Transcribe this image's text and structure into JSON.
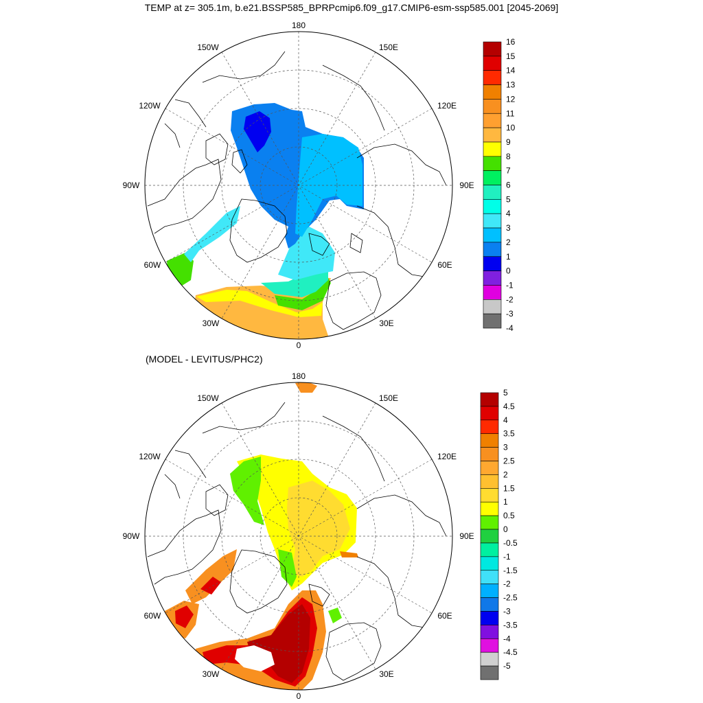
{
  "title": "TEMP at z= 305.1m, b.e21.BSSP585_BPRPcmip6.f09_g17.CMIP6-esm-ssp585.001 [2045-2069]",
  "subtitle": "(MODEL - LEVITUS/PHC2)",
  "maps": [
    {
      "id": "model",
      "lon_labels": [
        "180",
        "150W",
        "150E",
        "120W",
        "120E",
        "90W",
        "90E",
        "60W",
        "60E",
        "30W",
        "30E",
        "0"
      ]
    },
    {
      "id": "difference",
      "lon_labels": [
        "180",
        "150W",
        "150E",
        "120W",
        "120E",
        "90W",
        "90E",
        "60W",
        "60E",
        "30W",
        "30E",
        "0"
      ]
    }
  ],
  "colorbars": [
    {
      "labels": [
        "16",
        "15",
        "14",
        "13",
        "12",
        "11",
        "10",
        "9",
        "8",
        "7",
        "6",
        "5",
        "4",
        "3",
        "2",
        "1",
        "0",
        "-1",
        "-2",
        "-3",
        "-4"
      ],
      "colors": [
        "#b40000",
        "#e00000",
        "#ff2a00",
        "#f08000",
        "#f89020",
        "#ffa030",
        "#ffb840",
        "#ffff00",
        "#44e000",
        "#00f060",
        "#20f0c0",
        "#00ffe8",
        "#40e8f8",
        "#00c0ff",
        "#0a80f0",
        "#0000f0",
        "#8020e0",
        "#e000e0",
        "#c8c8c8",
        "#707070"
      ]
    },
    {
      "labels": [
        "5",
        "4.5",
        "4",
        "3.5",
        "3",
        "2.5",
        "2",
        "1.5",
        "1",
        "0.5",
        "0",
        "-0.5",
        "-1",
        "-1.5",
        "-2",
        "-2.5",
        "-3",
        "-3.5",
        "-4",
        "-4.5",
        "-5"
      ],
      "colors": [
        "#b40000",
        "#e00000",
        "#ff2a00",
        "#f08000",
        "#f89020",
        "#ffa830",
        "#ffc030",
        "#ffdc30",
        "#ffff00",
        "#60f000",
        "#20d040",
        "#00f0a0",
        "#00e8e0",
        "#40e0f8",
        "#00b0ff",
        "#1078e8",
        "#0000f0",
        "#8010e0",
        "#e010e0",
        "#d0d0d0",
        "#707070"
      ]
    }
  ],
  "colors": {
    "land_outline": "#000000",
    "grid": "#555555",
    "background": "#ffffff"
  }
}
